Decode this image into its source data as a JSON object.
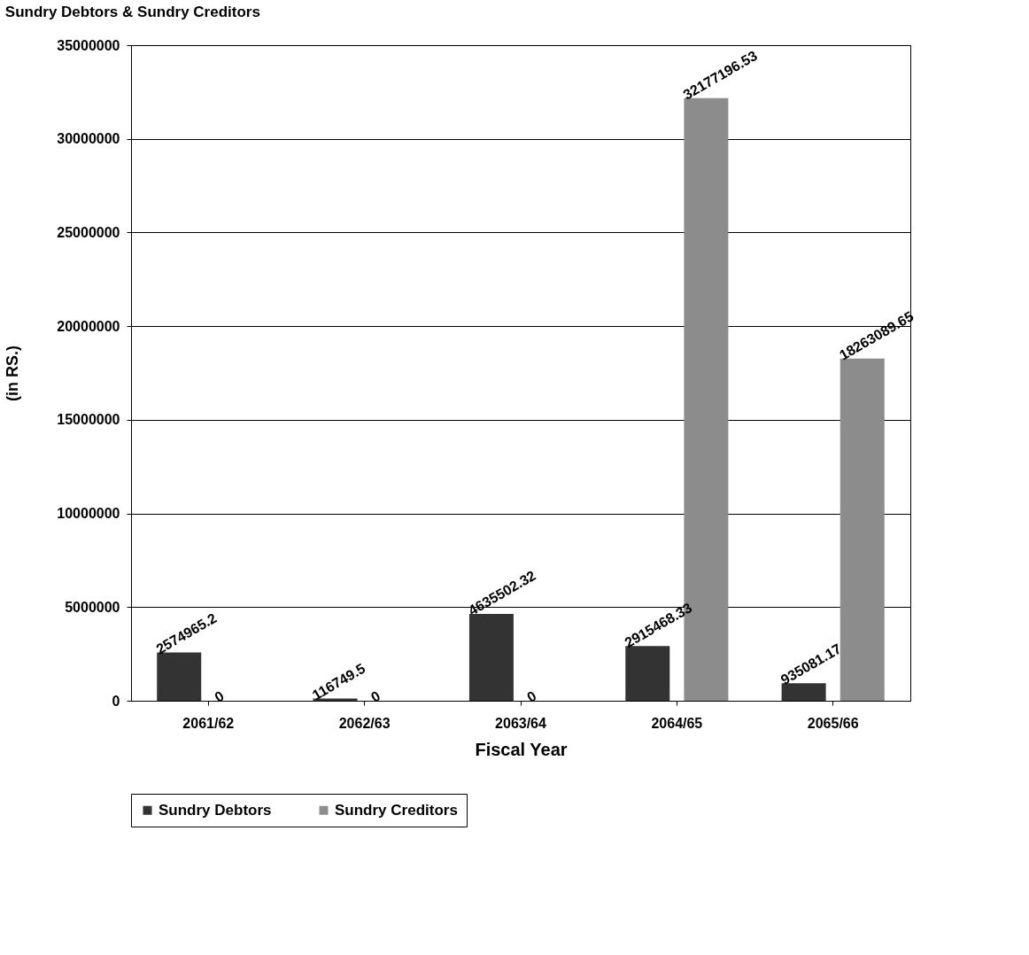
{
  "chart_data": {
    "type": "bar",
    "title": "Sundry Debtors & Sundry Creditors",
    "xlabel": "Fiscal Year",
    "ylabel": "(in RS.)",
    "categories": [
      "2061/62",
      "2062/63",
      "2063/64",
      "2064/65",
      "2065/66"
    ],
    "series": [
      {
        "name": "Sundry Debtors",
        "color": "#333333",
        "values": [
          2574965.2,
          116749.5,
          4635502.32,
          2915468.33,
          935081.17
        ]
      },
      {
        "name": "Sundry Creditors",
        "color": "#8c8c8c",
        "values": [
          0,
          0,
          0,
          32177196.53,
          18263089.65
        ]
      }
    ],
    "ylim": [
      0,
      35000000
    ],
    "yticks": [
      0,
      5000000,
      10000000,
      15000000,
      20000000,
      25000000,
      30000000,
      35000000
    ],
    "grid": "y",
    "legend": "bottom",
    "data_labels": true
  }
}
